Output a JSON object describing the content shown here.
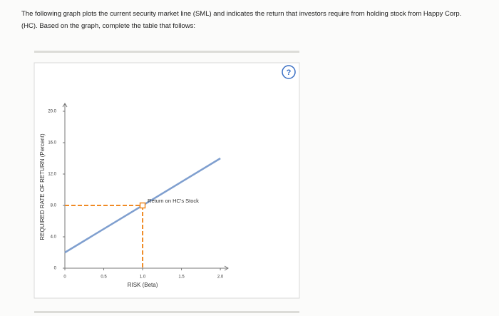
{
  "intro": "The following graph plots the current security market line (SML) and indicates the return that investors require from holding stock from Happy Corp. (HC). Based on the graph, complete the table that follows:",
  "help": "?",
  "chart_data": {
    "type": "line",
    "x_label": "RISK (Beta)",
    "y_label": "REQUIRED RATE OF RETURN (Percent)",
    "x": [
      0,
      2.0
    ],
    "series": [
      {
        "color": "#7f9fcf",
        "values": [
          2,
          14
        ]
      }
    ],
    "annotation": {
      "x": 1.0,
      "y": 8.0,
      "label": "Return on HC's Stock",
      "color": "#f08a24"
    },
    "xlim": [
      0,
      2.1
    ],
    "ylim": [
      0,
      21
    ],
    "xticks": [
      0,
      0.5,
      {
        "value": 1,
        "label": "1.0"
      },
      1.5,
      {
        "value": 2,
        "label": "2.0"
      }
    ],
    "yticks": [
      0,
      {
        "value": 4,
        "label": "4.0"
      },
      {
        "value": 8,
        "label": "8.0"
      },
      {
        "value": 12,
        "label": "12.0"
      },
      {
        "value": 16,
        "label": "16.0"
      },
      {
        "value": 20,
        "label": "20.0"
      }
    ]
  }
}
